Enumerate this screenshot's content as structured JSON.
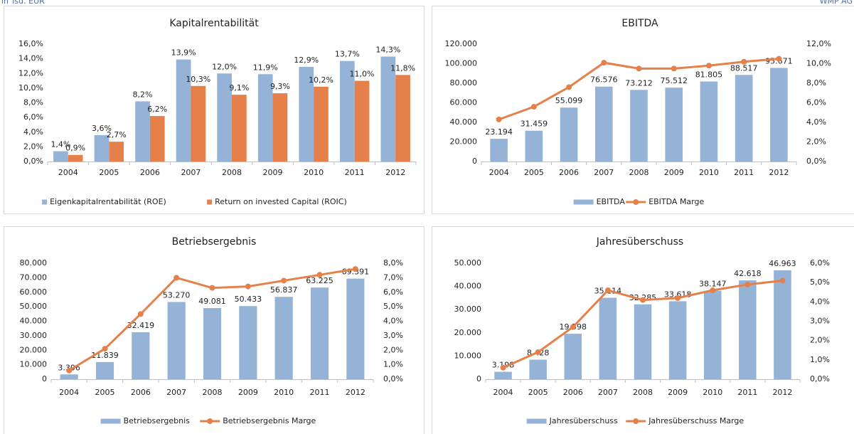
{
  "header": {
    "left": "in Tsd. EUR",
    "right": "WMP AG"
  },
  "chart_data": [
    {
      "type": "bar",
      "title": "Kapitalrentabilität",
      "categories": [
        "2004",
        "2005",
        "2006",
        "2007",
        "2008",
        "2009",
        "2010",
        "2011",
        "2012"
      ],
      "series": [
        {
          "name": "Eigenkapitalrentabilität (ROE)",
          "color": "#95b3d7",
          "values": [
            1.4,
            3.6,
            8.2,
            13.9,
            12.0,
            11.9,
            12.9,
            13.7,
            14.3
          ],
          "value_labels": [
            "1,4%",
            "3,6%",
            "8,2%",
            "13,9%",
            "12,0%",
            "11,9%",
            "12,9%",
            "13,7%",
            "14,3%"
          ]
        },
        {
          "name": "Return on invested Capital (ROIC)",
          "color": "#e5804a",
          "values": [
            0.9,
            2.7,
            6.2,
            10.3,
            9.1,
            9.3,
            10.2,
            11.0,
            11.8
          ],
          "value_labels": [
            "0,9%",
            "2,7%",
            "6,2%",
            "10,3%",
            "9,1%",
            "9,3%",
            "10,2%",
            "11,0%",
            "11,8%"
          ]
        }
      ],
      "ylim": [
        0,
        16
      ],
      "yticks": [
        {
          "value": 0,
          "label": "0,0%"
        },
        {
          "value": 2,
          "label": "2,0%"
        },
        {
          "value": 4,
          "label": "4,0%"
        },
        {
          "value": 6,
          "label": "6,0%"
        },
        {
          "value": 8,
          "label": "8,0%"
        },
        {
          "value": 10,
          "label": "10,0%"
        },
        {
          "value": 12,
          "label": "12,0%"
        },
        {
          "value": 14,
          "label": "14,0%"
        },
        {
          "value": 16,
          "label": "16,0%"
        }
      ],
      "grid": false,
      "legend": "bottom"
    },
    {
      "type": "bar",
      "title": "EBITDA",
      "categories": [
        "2004",
        "2005",
        "2006",
        "2007",
        "2008",
        "2009",
        "2010",
        "2011",
        "2012"
      ],
      "series": [
        {
          "name": "EBITDA",
          "color": "#95b3d7",
          "values": [
            23194,
            31459,
            55099,
            76576,
            73212,
            75512,
            81805,
            88517,
            95671
          ],
          "value_labels": [
            "23.194",
            "31.459",
            "55.099",
            "76.576",
            "73.212",
            "75.512",
            "81.805",
            "88.517",
            "95.671"
          ]
        },
        {
          "name": "EBITDA Marge",
          "color": "#e5804a",
          "type": "line",
          "axis": "y2",
          "values": [
            4.3,
            5.6,
            7.6,
            10.1,
            9.5,
            9.5,
            9.8,
            10.2,
            10.5
          ]
        }
      ],
      "ylim": [
        0,
        120000
      ],
      "yticks": [
        0,
        {
          "value": 20000,
          "label": "20.000"
        },
        {
          "value": 40000,
          "label": "40.000"
        },
        {
          "value": 60000,
          "label": "60.000"
        },
        {
          "value": 80000,
          "label": "80.000"
        },
        {
          "value": 100000,
          "label": "100.000"
        },
        {
          "value": 120000,
          "label": "120.000"
        }
      ],
      "y2lim": [
        0,
        12
      ],
      "y2ticks": [
        {
          "value": 0,
          "label": "0,0%"
        },
        {
          "value": 2,
          "label": "2,0%"
        },
        {
          "value": 4,
          "label": "4,0%"
        },
        {
          "value": 6,
          "label": "6,0%"
        },
        {
          "value": 8,
          "label": "8,0%"
        },
        {
          "value": 10,
          "label": "10,0%"
        },
        {
          "value": 12,
          "label": "12,0%"
        }
      ],
      "grid": false,
      "legend": "bottom"
    },
    {
      "type": "bar",
      "title": "Betriebsergebnis",
      "categories": [
        "2004",
        "2005",
        "2006",
        "2007",
        "2008",
        "2009",
        "2010",
        "2011",
        "2012"
      ],
      "series": [
        {
          "name": "Betriebsergebnis",
          "color": "#95b3d7",
          "values": [
            3306,
            11839,
            32419,
            53270,
            49081,
            50433,
            56837,
            63225,
            69391
          ],
          "value_labels": [
            "3.306",
            "11.839",
            "32.419",
            "53.270",
            "49.081",
            "50.433",
            "56.837",
            "63.225",
            "69.391"
          ]
        },
        {
          "name": "Betriebsergebnis Marge",
          "color": "#e5804a",
          "type": "line",
          "axis": "y2",
          "values": [
            0.6,
            2.1,
            4.5,
            7.0,
            6.3,
            6.4,
            6.8,
            7.2,
            7.6
          ]
        }
      ],
      "ylim": [
        0,
        80000
      ],
      "yticks": [
        0,
        {
          "value": 10000,
          "label": "10.000"
        },
        {
          "value": 20000,
          "label": "20.000"
        },
        {
          "value": 30000,
          "label": "30.000"
        },
        {
          "value": 40000,
          "label": "40.000"
        },
        {
          "value": 50000,
          "label": "50.000"
        },
        {
          "value": 60000,
          "label": "60.000"
        },
        {
          "value": 70000,
          "label": "70.000"
        },
        {
          "value": 80000,
          "label": "80.000"
        }
      ],
      "y2lim": [
        0,
        8
      ],
      "y2ticks": [
        {
          "value": 0,
          "label": "0,0%"
        },
        {
          "value": 1,
          "label": "1,0%"
        },
        {
          "value": 2,
          "label": "2,0%"
        },
        {
          "value": 3,
          "label": "3,0%"
        },
        {
          "value": 4,
          "label": "4,0%"
        },
        {
          "value": 5,
          "label": "5,0%"
        },
        {
          "value": 6,
          "label": "6,0%"
        },
        {
          "value": 7,
          "label": "7,0%"
        },
        {
          "value": 8,
          "label": "8,0%"
        }
      ],
      "grid": false,
      "legend": "bottom"
    },
    {
      "type": "bar",
      "title": "Jahresüberschuss",
      "categories": [
        "2004",
        "2005",
        "2006",
        "2007",
        "2008",
        "2009",
        "2010",
        "2011",
        "2012"
      ],
      "series": [
        {
          "name": "Jahresüberschuss",
          "color": "#95b3d7",
          "values": [
            3198,
            8428,
            19598,
            35114,
            32285,
            33618,
            38147,
            42618,
            46963
          ],
          "value_labels": [
            "3.198",
            "8.428",
            "19.598",
            "35.114",
            "32.285",
            "33.618",
            "38.147",
            "42.618",
            "46.963"
          ]
        },
        {
          "name": "Jahresüberschuss Marge",
          "color": "#e5804a",
          "type": "line",
          "axis": "y2",
          "values": [
            0.6,
            1.4,
            2.7,
            4.6,
            4.1,
            4.2,
            4.6,
            4.9,
            5.1
          ]
        }
      ],
      "ylim": [
        0,
        50000
      ],
      "yticks": [
        0,
        {
          "value": 10000,
          "label": "10.000"
        },
        {
          "value": 20000,
          "label": "20.000"
        },
        {
          "value": 30000,
          "label": "30.000"
        },
        {
          "value": 40000,
          "label": "40.000"
        },
        {
          "value": 50000,
          "label": "50.000"
        }
      ],
      "y2lim": [
        0,
        6
      ],
      "y2ticks": [
        {
          "value": 0,
          "label": "0,0%"
        },
        {
          "value": 1,
          "label": "1,0%"
        },
        {
          "value": 2,
          "label": "2,0%"
        },
        {
          "value": 3,
          "label": "3,0%"
        },
        {
          "value": 4,
          "label": "4,0%"
        },
        {
          "value": 5,
          "label": "5,0%"
        },
        {
          "value": 6,
          "label": "6,0%"
        }
      ],
      "grid": false,
      "legend": "bottom"
    }
  ]
}
